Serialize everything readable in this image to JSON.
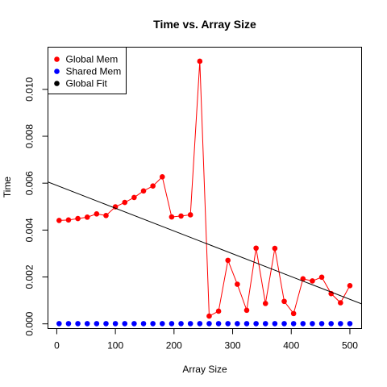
{
  "chart_data": {
    "type": "scatter",
    "title": "Time vs. Array Size",
    "xlabel": "Array Size",
    "ylabel": "Time",
    "xlim": [
      -15,
      520
    ],
    "ylim": [
      -0.0002,
      0.0118
    ],
    "x_ticks": [
      0,
      100,
      200,
      300,
      400,
      500
    ],
    "x_tick_labels": [
      "0",
      "100",
      "200",
      "300",
      "400",
      "500"
    ],
    "y_ticks": [
      0.0,
      0.002,
      0.004,
      0.006,
      0.008,
      0.01
    ],
    "y_tick_labels": [
      "0.000",
      "0.002",
      "0.004",
      "0.006",
      "0.008",
      "0.010"
    ],
    "grid": false,
    "legend_position": "top-left",
    "legend": [
      {
        "label": "Global Mem",
        "color": "#ff0000"
      },
      {
        "label": "Shared Mem",
        "color": "#0000ff"
      },
      {
        "label": "Global Fit",
        "color": "#000000"
      }
    ],
    "series": [
      {
        "name": "Global Mem",
        "color": "#ff0000",
        "style": "line+points",
        "x": [
          4,
          20,
          36,
          52,
          68,
          84,
          100,
          116,
          132,
          148,
          164,
          180,
          196,
          212,
          228,
          244,
          260,
          276,
          292,
          308,
          324,
          340,
          356,
          372,
          388,
          404,
          420,
          436,
          452,
          468,
          484,
          500
        ],
        "y": [
          0.00441,
          0.00443,
          0.00449,
          0.00455,
          0.00469,
          0.00462,
          0.00499,
          0.00518,
          0.00539,
          0.00567,
          0.00588,
          0.00627,
          0.00456,
          0.0046,
          0.00465,
          0.0112,
          0.00033,
          0.00054,
          0.00271,
          0.00169,
          0.00058,
          0.00323,
          0.00087,
          0.00322,
          0.00096,
          0.00044,
          0.00192,
          0.00183,
          0.00199,
          0.00129,
          0.0009,
          0.00163
        ]
      },
      {
        "name": "Shared Mem",
        "color": "#0000ff",
        "style": "points",
        "x": [
          4,
          20,
          36,
          52,
          68,
          84,
          100,
          116,
          132,
          148,
          164,
          180,
          196,
          212,
          228,
          244,
          260,
          276,
          292,
          308,
          324,
          340,
          356,
          372,
          388,
          404,
          420,
          436,
          452,
          468,
          484,
          500
        ],
        "y": [
          1e-05,
          1e-05,
          1e-05,
          1e-05,
          1e-05,
          1e-05,
          1e-05,
          1e-05,
          1e-05,
          1e-05,
          1e-05,
          1e-05,
          1e-05,
          1e-05,
          1e-05,
          1e-05,
          1e-05,
          1e-05,
          1e-05,
          1e-05,
          1e-05,
          1e-05,
          1e-05,
          1e-05,
          1e-05,
          1e-05,
          1e-05,
          1e-05,
          1e-05,
          1e-05,
          1e-05,
          1e-05
        ]
      },
      {
        "name": "Global Fit",
        "color": "#000000",
        "style": "abline",
        "x": [
          -15,
          520
        ],
        "y": [
          0.00605,
          0.00085
        ]
      }
    ]
  }
}
